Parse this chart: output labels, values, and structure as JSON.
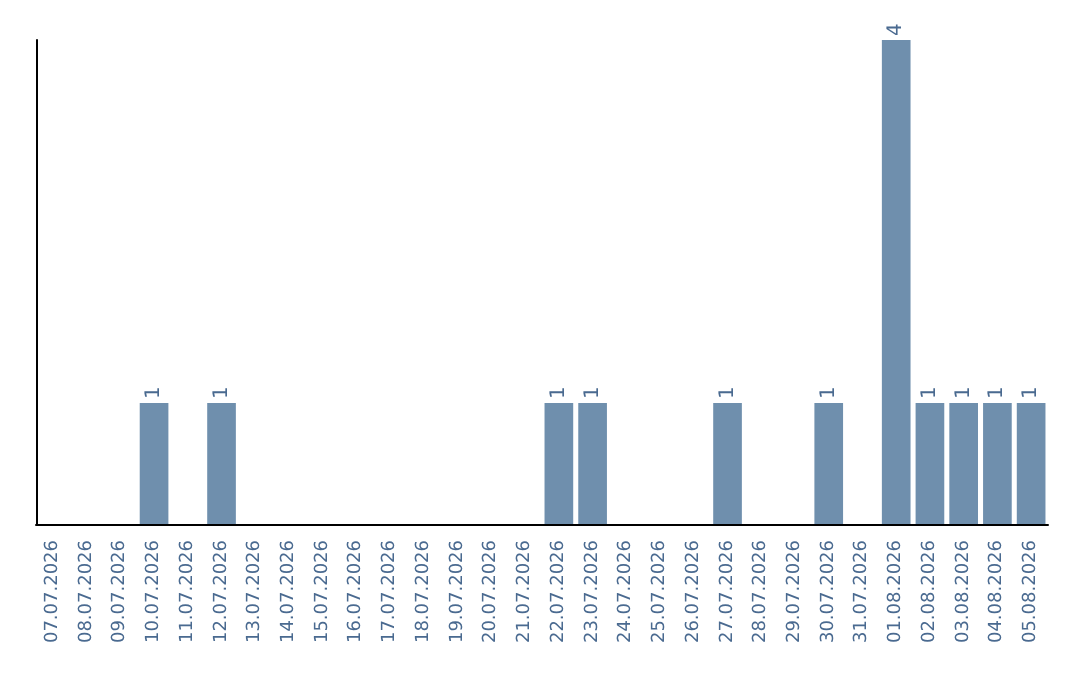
{
  "chart_data": {
    "type": "bar",
    "categories": [
      "07.07.2026",
      "08.07.2026",
      "09.07.2026",
      "10.07.2026",
      "11.07.2026",
      "12.07.2026",
      "13.07.2026",
      "14.07.2026",
      "15.07.2026",
      "16.07.2026",
      "17.07.2026",
      "18.07.2026",
      "19.07.2026",
      "20.07.2026",
      "21.07.2026",
      "22.07.2026",
      "23.07.2026",
      "24.07.2026",
      "25.07.2026",
      "26.07.2026",
      "27.07.2026",
      "28.07.2026",
      "29.07.2026",
      "30.07.2026",
      "31.07.2026",
      "01.08.2026",
      "02.08.2026",
      "03.08.2026",
      "04.08.2026",
      "05.08.2026"
    ],
    "values": [
      0,
      0,
      0,
      1,
      0,
      1,
      0,
      0,
      0,
      0,
      0,
      0,
      0,
      0,
      0,
      1,
      1,
      0,
      0,
      0,
      1,
      0,
      0,
      1,
      0,
      4,
      1,
      1,
      1,
      1
    ],
    "value_labels": [
      null,
      null,
      null,
      "1",
      null,
      "1",
      null,
      null,
      null,
      null,
      null,
      null,
      null,
      null,
      null,
      "1",
      "1",
      null,
      null,
      null,
      "1",
      null,
      null,
      "1",
      null,
      "4",
      "1",
      "1",
      "1",
      "1"
    ],
    "color": "#6f8fad",
    "grid": false
  }
}
